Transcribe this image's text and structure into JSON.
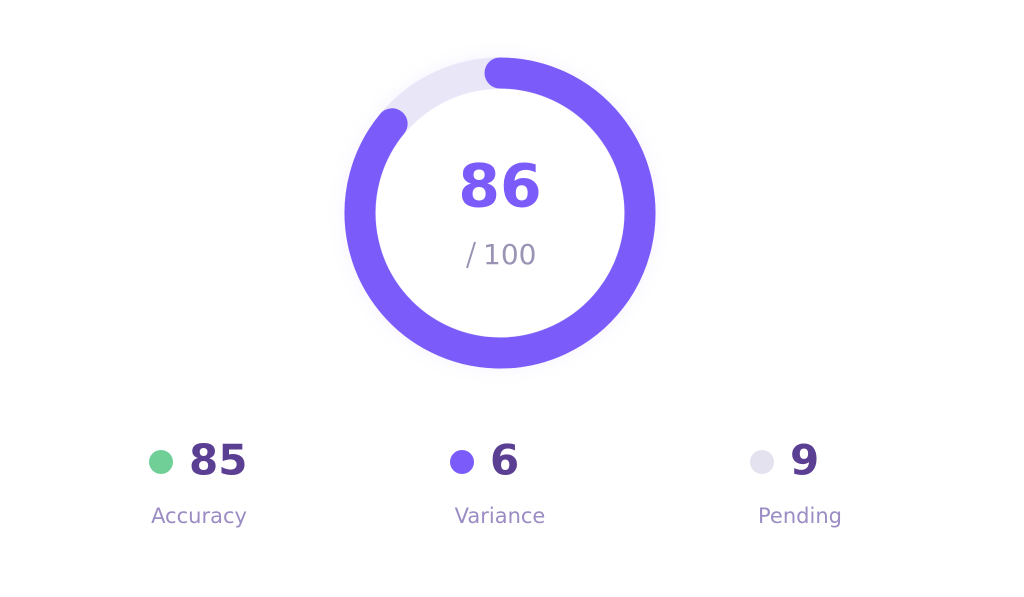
{
  "gauge": {
    "value": 86,
    "max": 100,
    "color": "#7b5cfa",
    "track_color": "#e9e6f8"
  },
  "stats": [
    {
      "value": 85,
      "label": "Accuracy",
      "color": "#6fcf97"
    },
    {
      "value": 6,
      "label": "Variance",
      "color": "#7b5cfa"
    },
    {
      "value": 9,
      "label": "Pending",
      "color": "#e4e2ee"
    }
  ]
}
